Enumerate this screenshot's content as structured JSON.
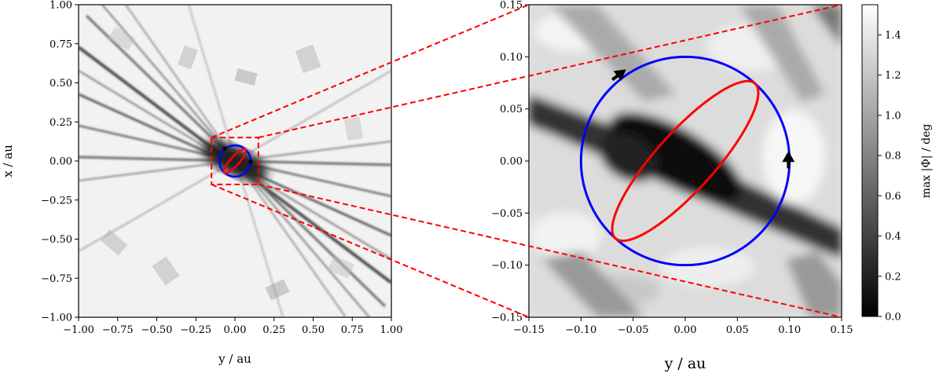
{
  "chart_data": [
    {
      "type": "heatmap",
      "panel": "overview",
      "xlabel": "y / au",
      "ylabel": "x / au",
      "xlim": [
        -1.0,
        1.0
      ],
      "ylim": [
        -1.0,
        1.0
      ],
      "xticks": [
        "−1.00",
        "−0.75",
        "−0.50",
        "−0.25",
        "0.00",
        "0.25",
        "0.50",
        "0.75",
        "1.00"
      ],
      "yticks": [
        "−1.00",
        "−0.75",
        "−0.50",
        "−0.25",
        "0.00",
        "0.25",
        "0.50",
        "0.75",
        "1.00"
      ],
      "zoom_box": {
        "x": [
          -0.15,
          0.15
        ],
        "y": [
          -0.15,
          0.15
        ]
      },
      "series": [
        {
          "color": "#0000ff",
          "shape": "circle",
          "cx": 0.0,
          "cy": 0.0,
          "r": 0.1
        },
        {
          "color": "#ff0000",
          "shape": "ellipse",
          "cx": 0.0,
          "cy": 0.0,
          "rx": 0.1,
          "ry": 0.028,
          "angle_deg": -48
        }
      ]
    },
    {
      "type": "heatmap",
      "panel": "zoom",
      "xlabel": "y / au",
      "ylabel": "",
      "xlim": [
        -0.15,
        0.15
      ],
      "ylim": [
        -0.15,
        0.15
      ],
      "xticks": [
        "−0.15",
        "−0.10",
        "−0.05",
        "0.00",
        "0.05",
        "0.10",
        "0.15"
      ],
      "yticks": [
        "−0.15",
        "−0.10",
        "−0.05",
        "0.00",
        "0.05",
        "0.10",
        "0.15"
      ],
      "series": [
        {
          "color": "#0000ff",
          "shape": "circle",
          "cx": 0.0,
          "cy": 0.0,
          "r": 0.1
        },
        {
          "color": "#ff0000",
          "shape": "ellipse",
          "cx": 0.0,
          "cy": 0.0,
          "rx": 0.1,
          "ry": 0.028,
          "angle_deg": -48
        }
      ],
      "arrows": [
        {
          "color": "#000000",
          "x": 0.099,
          "y": -0.007,
          "direction": "up"
        },
        {
          "color": "#000000",
          "x": -0.07,
          "y": 0.078,
          "direction": "up-right"
        }
      ]
    },
    {
      "type": "colorbar",
      "label": "max |Φ| / deg",
      "range": [
        0.0,
        1.55
      ],
      "ticks": [
        "0.0",
        "0.2",
        "0.4",
        "0.6",
        "0.8",
        "1.0",
        "1.2",
        "1.4"
      ],
      "colormap": [
        "#000000",
        "#ffffff"
      ]
    }
  ]
}
